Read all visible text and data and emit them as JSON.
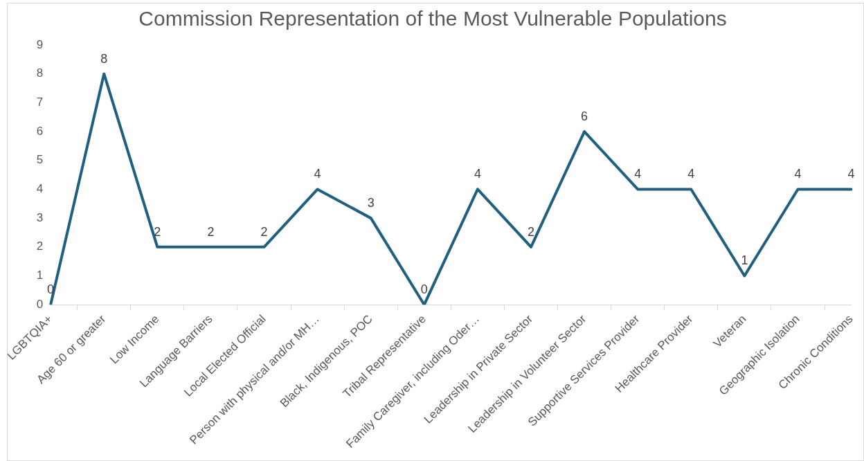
{
  "chart_data": {
    "type": "line",
    "title": "Commission Representation of the Most Vulnerable Populations",
    "categories": [
      "LGBTQIA+",
      "Age 60 or greater",
      "Low Income",
      "Language Barriers",
      "Local Elected Official",
      "Person with physical and/or MH…",
      "Black, Indigenous, POC",
      "Tribal Representative",
      "Family Caregiver, including Oder…",
      "Leadership in Private Sector",
      "Leadership in Volunteer Sector",
      "Supportive Services Provider",
      "Healthcare Provider",
      "Veteran",
      "Geographic Isolation",
      "Chronic Conditions"
    ],
    "series": [
      {
        "color": "#1f5f80",
        "values": [
          0,
          8,
          2,
          2,
          2,
          4,
          3,
          0,
          4,
          2,
          6,
          4,
          4,
          1,
          4,
          4
        ]
      }
    ],
    "ylim": [
      0,
      9
    ],
    "yticks": [
      0,
      1,
      2,
      3,
      4,
      5,
      6,
      7,
      8,
      9
    ],
    "grid": false,
    "legend": false,
    "data_labels": true,
    "marker": "none",
    "line_style": "solid"
  }
}
